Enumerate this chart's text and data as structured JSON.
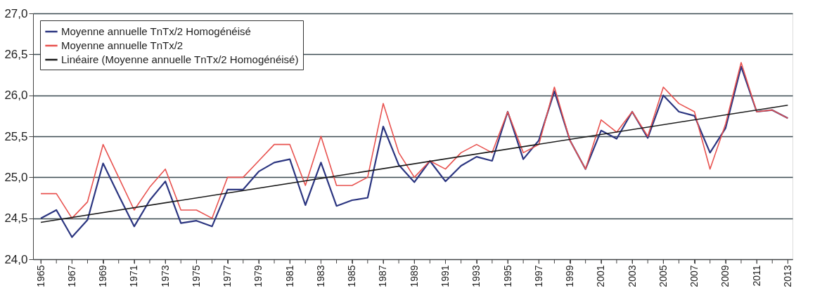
{
  "chart_data": {
    "type": "line",
    "x": [
      1965,
      1966,
      1967,
      1968,
      1969,
      1970,
      1971,
      1972,
      1973,
      1974,
      1975,
      1976,
      1977,
      1978,
      1979,
      1980,
      1981,
      1982,
      1983,
      1984,
      1985,
      1986,
      1987,
      1988,
      1989,
      1990,
      1991,
      1992,
      1993,
      1994,
      1995,
      1996,
      1997,
      1998,
      1999,
      2000,
      2001,
      2002,
      2003,
      2004,
      2005,
      2006,
      2007,
      2008,
      2009,
      2010,
      2011,
      2012,
      2013
    ],
    "series": [
      {
        "name": "Moyenne annuelle TnTx/2 Homogénéisé",
        "color": "#2b3580",
        "values": [
          24.5,
          24.6,
          24.27,
          24.48,
          25.17,
          24.78,
          24.4,
          24.72,
          24.95,
          24.44,
          24.47,
          24.4,
          24.85,
          24.85,
          25.07,
          25.18,
          25.22,
          24.66,
          25.18,
          24.65,
          24.72,
          24.75,
          25.62,
          25.15,
          24.94,
          25.2,
          24.95,
          25.14,
          25.25,
          25.2,
          25.8,
          25.22,
          25.45,
          26.05,
          25.45,
          25.1,
          25.57,
          25.47,
          25.8,
          25.48,
          26.0,
          25.8,
          25.75,
          25.3,
          25.6,
          26.35,
          25.8,
          25.82,
          25.72
        ]
      },
      {
        "name": "Moyenne annuelle TnTx/2",
        "color": "#e8524f",
        "values": [
          24.8,
          24.8,
          24.5,
          24.7,
          25.4,
          25.0,
          24.6,
          24.88,
          25.1,
          24.6,
          24.6,
          24.5,
          25.0,
          25.0,
          25.2,
          25.4,
          25.4,
          24.9,
          25.5,
          24.9,
          24.9,
          25.0,
          25.9,
          25.3,
          25.0,
          25.2,
          25.1,
          25.3,
          25.4,
          25.3,
          25.8,
          25.3,
          25.4,
          26.1,
          25.45,
          25.1,
          25.7,
          25.55,
          25.8,
          25.5,
          26.1,
          25.9,
          25.8,
          25.1,
          25.65,
          26.4,
          25.8,
          25.82,
          25.72
        ]
      },
      {
        "name": "Linéaire (Moyenne annuelle TnTx/2 Homogénéisé)",
        "color": "#1a1a1a",
        "type": "line",
        "x": [
          1965,
          2013
        ],
        "values": [
          24.45,
          25.88
        ]
      }
    ],
    "xlim": [
      1964.5,
      2013.3
    ],
    "xticks": [
      1965,
      {
        "value": 1966,
        "label": null
      },
      1967,
      {
        "value": 1968,
        "label": null
      },
      1969,
      {
        "value": 1970,
        "label": null
      },
      1971,
      {
        "value": 1972,
        "label": null
      },
      1973,
      {
        "value": 1974,
        "label": null
      },
      1975,
      {
        "value": 1976,
        "label": null
      },
      1977,
      {
        "value": 1978,
        "label": null
      },
      1979,
      {
        "value": 1980,
        "label": null
      },
      1981,
      {
        "value": 1982,
        "label": null
      },
      1983,
      {
        "value": 1984,
        "label": null
      },
      1985,
      {
        "value": 1986,
        "label": null
      },
      1987,
      {
        "value": 1988,
        "label": null
      },
      1989,
      {
        "value": 1990,
        "label": null
      },
      1991,
      {
        "value": 1992,
        "label": null
      },
      1993,
      {
        "value": 1994,
        "label": null
      },
      1995,
      {
        "value": 1996,
        "label": null
      },
      1997,
      {
        "value": 1998,
        "label": null
      },
      1999,
      {
        "value": 2000,
        "label": null
      },
      2001,
      {
        "value": 2002,
        "label": null
      },
      2003,
      {
        "value": 2004,
        "label": null
      },
      2005,
      {
        "value": 2006,
        "label": null
      },
      2007,
      {
        "value": 2008,
        "label": null
      },
      2009,
      {
        "value": 2010,
        "label": null
      },
      2011,
      {
        "value": 2012,
        "label": null
      },
      2013
    ],
    "ylim": [
      24,
      27
    ],
    "yticks": [
      {
        "value": 24,
        "label": "24,0"
      },
      {
        "value": 24.5,
        "label": "24,5"
      },
      {
        "value": 25,
        "label": "25,0"
      },
      {
        "value": 25.5,
        "label": "25,5"
      },
      {
        "value": 26,
        "label": "26,0"
      },
      {
        "value": 26.5,
        "label": "26,5"
      },
      {
        "value": 27,
        "label": "27,0"
      }
    ],
    "grid": "y",
    "legend": "top left",
    "marker": "none",
    "line_style": "solid"
  }
}
